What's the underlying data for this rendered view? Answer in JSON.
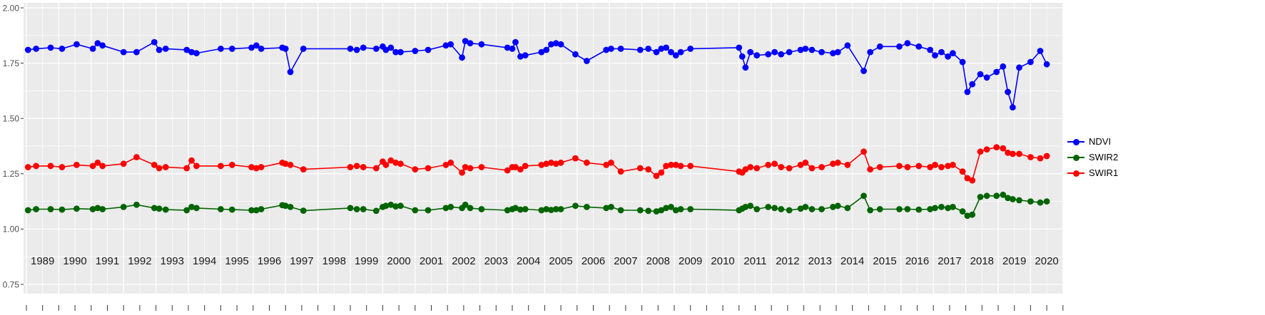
{
  "chart_data": {
    "type": "line",
    "title": "",
    "xlabel": "",
    "ylabel": "",
    "x_tick_labels": [
      "1989",
      "1990",
      "1991",
      "1992",
      "1993",
      "1994",
      "1995",
      "1996",
      "1997",
      "1998",
      "1999",
      "2000",
      "2001",
      "2002",
      "2003",
      "2004",
      "2005",
      "2006",
      "2007",
      "2008",
      "2009",
      "2010",
      "2011",
      "2012",
      "2013",
      "2014",
      "2015",
      "2016",
      "2017",
      "2018",
      "2019",
      "2020"
    ],
    "y_ticks": [
      2.0,
      1.75,
      1.5,
      1.25,
      1.0,
      0.75
    ],
    "y_tick_labels": [
      "2.00",
      "1.75",
      "1.50",
      "1.25",
      "1.00",
      "0.75"
    ],
    "xlim": [
      1989,
      2021
    ],
    "ylim": [
      0.75,
      2.0
    ],
    "grid": "on",
    "panel_bg": "#EBEBEB",
    "grid_color": "#FFFFFF",
    "axis_text_color": "#4d4d4d",
    "x": [
      1989.05,
      1989.3,
      1989.75,
      1990.1,
      1990.55,
      1991.05,
      1991.2,
      1991.35,
      1992.0,
      1992.4,
      1992.95,
      1993.1,
      1993.3,
      1993.95,
      1994.1,
      1994.25,
      1995.0,
      1995.35,
      1995.95,
      1996.1,
      1996.25,
      1996.9,
      1997.0,
      1997.15,
      1997.55,
      1999.0,
      1999.2,
      1999.4,
      1999.8,
      2000.0,
      2000.1,
      2000.25,
      2000.4,
      2000.55,
      2001.0,
      2001.4,
      2001.95,
      2002.1,
      2002.45,
      2002.55,
      2002.7,
      2003.05,
      2003.85,
      2004.0,
      2004.1,
      2004.25,
      2004.4,
      2004.9,
      2005.05,
      2005.2,
      2005.35,
      2005.5,
      2005.95,
      2006.3,
      2006.9,
      2007.05,
      2007.35,
      2007.95,
      2008.2,
      2008.45,
      2008.6,
      2008.75,
      2008.9,
      2009.05,
      2009.2,
      2009.5,
      2011.0,
      2011.1,
      2011.2,
      2011.35,
      2011.55,
      2011.9,
      2012.1,
      2012.3,
      2012.55,
      2012.9,
      2013.05,
      2013.25,
      2013.55,
      2013.9,
      2014.05,
      2014.35,
      2014.85,
      2015.05,
      2015.35,
      2015.95,
      2016.2,
      2016.55,
      2016.9,
      2017.05,
      2017.25,
      2017.45,
      2017.6,
      2017.9,
      2018.05,
      2018.2,
      2018.45,
      2018.65,
      2018.95,
      2019.15,
      2019.3,
      2019.45,
      2019.65,
      2020.0,
      2020.3,
      2020.5
    ],
    "series": [
      {
        "name": "NDVI",
        "color": "#0000FF",
        "values": [
          1.81,
          1.815,
          1.82,
          1.815,
          1.835,
          1.815,
          1.84,
          1.83,
          1.8,
          1.8,
          1.845,
          1.81,
          1.815,
          1.81,
          1.8,
          1.795,
          1.815,
          1.815,
          1.82,
          1.83,
          1.815,
          1.82,
          1.815,
          1.71,
          1.815,
          1.815,
          1.81,
          1.82,
          1.815,
          1.825,
          1.81,
          1.82,
          1.8,
          1.8,
          1.805,
          1.81,
          1.83,
          1.835,
          1.775,
          1.85,
          1.84,
          1.835,
          1.82,
          1.815,
          1.845,
          1.78,
          1.785,
          1.8,
          1.81,
          1.835,
          1.84,
          1.835,
          1.79,
          1.76,
          1.81,
          1.815,
          1.815,
          1.81,
          1.815,
          1.8,
          1.815,
          1.82,
          1.8,
          1.785,
          1.8,
          1.815,
          1.82,
          1.78,
          1.73,
          1.8,
          1.785,
          1.79,
          1.8,
          1.79,
          1.8,
          1.81,
          1.815,
          1.81,
          1.8,
          1.795,
          1.8,
          1.83,
          1.715,
          1.8,
          1.825,
          1.825,
          1.84,
          1.825,
          1.81,
          1.785,
          1.8,
          1.78,
          1.795,
          1.755,
          1.62,
          1.655,
          1.7,
          1.685,
          1.71,
          1.735,
          1.62,
          1.55,
          1.73,
          1.755,
          1.805,
          1.745
        ]
      },
      {
        "name": "SWIR2",
        "color": "#006400",
        "values": [
          1.085,
          1.09,
          1.09,
          1.088,
          1.092,
          1.09,
          1.095,
          1.09,
          1.1,
          1.11,
          1.095,
          1.092,
          1.088,
          1.085,
          1.1,
          1.095,
          1.09,
          1.088,
          1.085,
          1.085,
          1.09,
          1.108,
          1.105,
          1.1,
          1.083,
          1.095,
          1.09,
          1.09,
          1.082,
          1.1,
          1.105,
          1.11,
          1.102,
          1.105,
          1.085,
          1.085,
          1.095,
          1.1,
          1.095,
          1.11,
          1.095,
          1.09,
          1.085,
          1.09,
          1.095,
          1.088,
          1.09,
          1.085,
          1.09,
          1.086,
          1.09,
          1.09,
          1.105,
          1.1,
          1.095,
          1.1,
          1.085,
          1.085,
          1.082,
          1.08,
          1.085,
          1.095,
          1.1,
          1.085,
          1.09,
          1.09,
          1.085,
          1.092,
          1.1,
          1.105,
          1.09,
          1.1,
          1.095,
          1.09,
          1.085,
          1.092,
          1.1,
          1.09,
          1.09,
          1.1,
          1.105,
          1.095,
          1.15,
          1.085,
          1.09,
          1.09,
          1.09,
          1.088,
          1.09,
          1.095,
          1.1,
          1.095,
          1.1,
          1.08,
          1.06,
          1.065,
          1.145,
          1.15,
          1.15,
          1.155,
          1.14,
          1.135,
          1.13,
          1.125,
          1.12,
          1.125
        ]
      },
      {
        "name": "SWIR1",
        "color": "#FF0000",
        "values": [
          1.28,
          1.285,
          1.285,
          1.28,
          1.29,
          1.285,
          1.3,
          1.285,
          1.295,
          1.325,
          1.29,
          1.275,
          1.28,
          1.275,
          1.31,
          1.285,
          1.285,
          1.29,
          1.28,
          1.275,
          1.28,
          1.3,
          1.295,
          1.29,
          1.27,
          1.28,
          1.285,
          1.28,
          1.275,
          1.305,
          1.29,
          1.31,
          1.3,
          1.295,
          1.27,
          1.275,
          1.29,
          1.3,
          1.255,
          1.28,
          1.275,
          1.28,
          1.265,
          1.28,
          1.28,
          1.27,
          1.285,
          1.29,
          1.295,
          1.3,
          1.295,
          1.3,
          1.32,
          1.3,
          1.29,
          1.3,
          1.26,
          1.275,
          1.27,
          1.24,
          1.255,
          1.285,
          1.29,
          1.29,
          1.285,
          1.285,
          1.26,
          1.255,
          1.27,
          1.28,
          1.275,
          1.29,
          1.295,
          1.28,
          1.275,
          1.29,
          1.3,
          1.275,
          1.28,
          1.295,
          1.3,
          1.29,
          1.35,
          1.27,
          1.28,
          1.285,
          1.28,
          1.285,
          1.28,
          1.29,
          1.28,
          1.285,
          1.29,
          1.26,
          1.23,
          1.22,
          1.35,
          1.36,
          1.37,
          1.365,
          1.345,
          1.34,
          1.34,
          1.325,
          1.32,
          1.33
        ]
      }
    ],
    "legend": {
      "position": "right",
      "items": [
        {
          "label": "NDVI",
          "color": "#0000FF"
        },
        {
          "label": "SWIR2",
          "color": "#006400"
        },
        {
          "label": "SWIR1",
          "color": "#FF0000"
        }
      ]
    }
  }
}
